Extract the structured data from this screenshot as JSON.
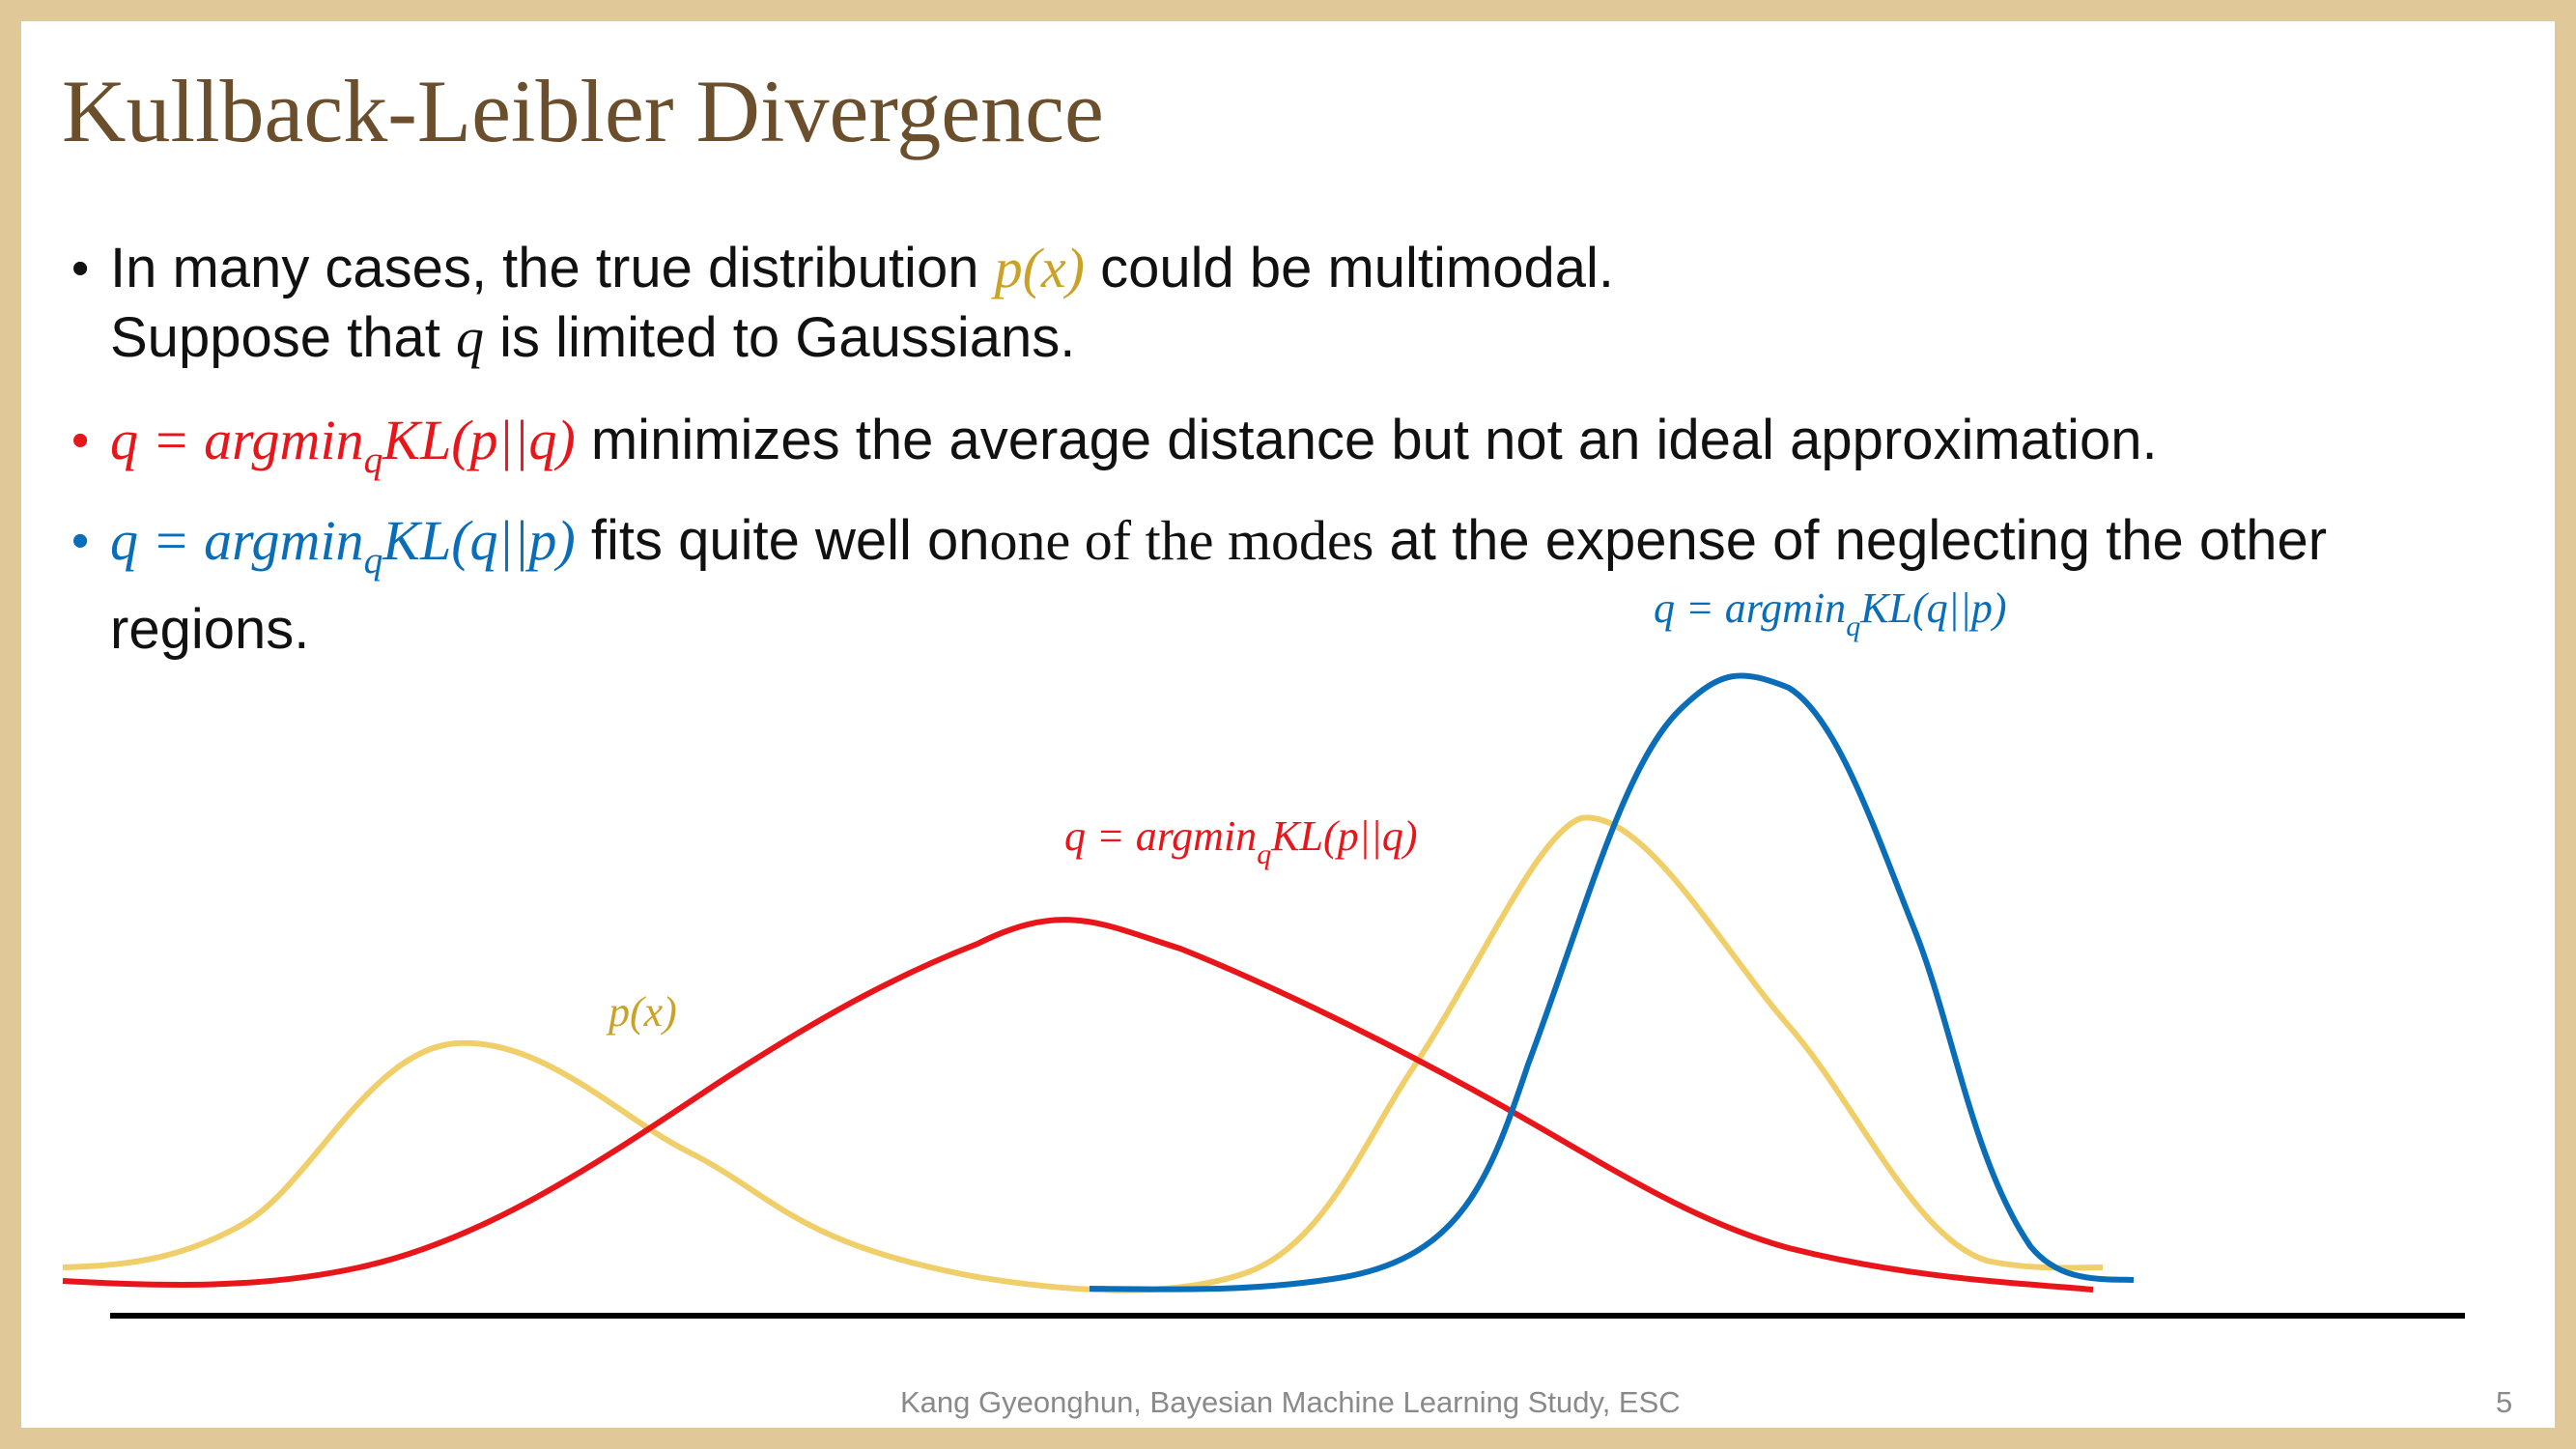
{
  "slide": {
    "title": "Kullback-Leibler Divergence",
    "page_number": "5",
    "footer": "Kang Gyeonghun, Bayesian Machine Learning Study, ESC"
  },
  "bullets": [
    {
      "marker": "•",
      "pre": "In many cases, the true distribution ",
      "math": "p(x)",
      "post": " could be multimodal.",
      "line2_pre": "Suppose that ",
      "line2_math": "q",
      "line2_post": " is limited to Gaussians."
    },
    {
      "marker": "•",
      "math_lhs": "q = argmin",
      "math_sub": "q",
      "math_rhs": "KL(p||q)",
      "post": " minimizes the average distance but not an ideal approximation."
    },
    {
      "marker": "•",
      "math_lhs": "q = argmin",
      "math_sub": "q",
      "math_rhs": "KL(q||p)",
      "pre2": " fits quite well on",
      "emphasis": "one of the modes",
      "post": " at the expense of neglecting the other regions."
    }
  ],
  "diagram": {
    "labels": {
      "p": "p(x)",
      "red_lhs": "q = argmin",
      "red_sub": "q",
      "red_rhs": "KL(p||q)",
      "blue_lhs": "q = argmin",
      "blue_sub": "q",
      "blue_rhs": "KL(q||p)"
    }
  },
  "colors": {
    "title": "#6b4f2d",
    "border": "#e0c898",
    "p_curve": "#f0cf6a",
    "p_text": "#c9a227",
    "red": "#e8161b",
    "blue": "#0a6db7",
    "axis": "#000000"
  }
}
